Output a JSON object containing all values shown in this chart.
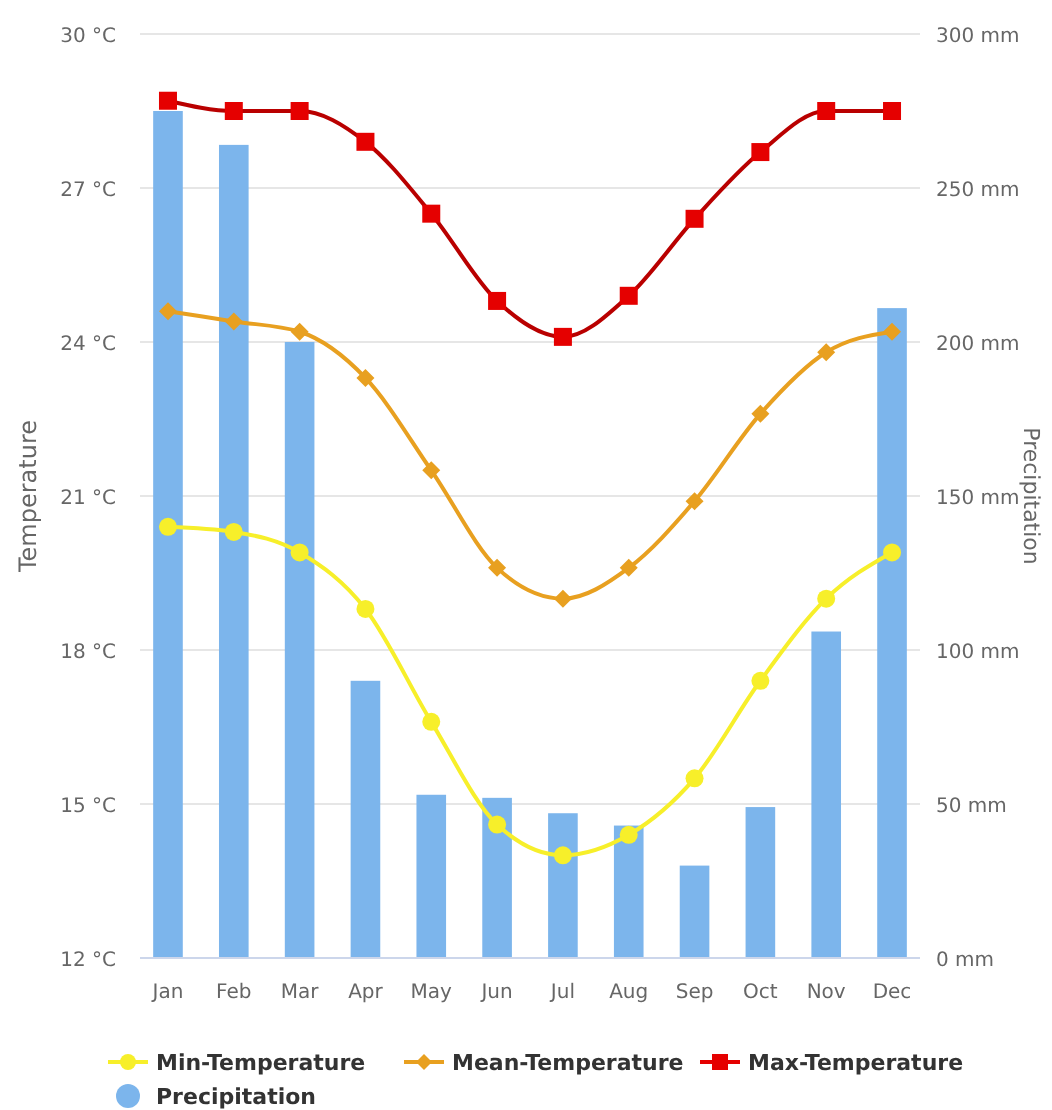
{
  "chart_data": {
    "type": "line",
    "categories": [
      "Jan",
      "Feb",
      "Mar",
      "Apr",
      "May",
      "Jun",
      "Jul",
      "Aug",
      "Sep",
      "Oct",
      "Nov",
      "Dec"
    ],
    "ylabel": "Temperature",
    "y2label": "Precipitation",
    "ylim": [
      12,
      30
    ],
    "yticks": [
      {
        "value": 12,
        "label": "12 °C"
      },
      {
        "value": 15,
        "label": "15 °C"
      },
      {
        "value": 18,
        "label": "18 °C"
      },
      {
        "value": 21,
        "label": "21 °C"
      },
      {
        "value": 24,
        "label": "24 °C"
      },
      {
        "value": 27,
        "label": "27 °C"
      },
      {
        "value": 30,
        "label": "30 °C"
      }
    ],
    "y2lim": [
      0,
      300
    ],
    "y2ticks": [
      {
        "value": 0,
        "label": "0 mm"
      },
      {
        "value": 50,
        "label": "50 mm"
      },
      {
        "value": 100,
        "label": "100 mm"
      },
      {
        "value": 150,
        "label": "150 mm"
      },
      {
        "value": 200,
        "label": "200 mm"
      },
      {
        "value": 250,
        "label": "250 mm"
      },
      {
        "value": 300,
        "label": "300 mm"
      }
    ],
    "grid": "y",
    "legend": "bottom",
    "series": [
      {
        "name": "Precipitation",
        "type": "bar",
        "axis": "y2",
        "color": "#7cb5ec",
        "values": [
          275,
          264,
          200,
          90,
          53,
          52,
          47,
          43,
          30,
          49,
          106,
          211
        ]
      },
      {
        "name": "Min-Temperature",
        "marker": "circle",
        "color": "#f7ef2a",
        "values": [
          20.4,
          20.3,
          19.9,
          18.8,
          16.6,
          14.6,
          14.0,
          14.4,
          15.5,
          17.4,
          19.0,
          19.9
        ]
      },
      {
        "name": "Mean-Temperature",
        "marker": "diamond",
        "color": "#e8a020",
        "values": [
          24.6,
          24.4,
          24.2,
          23.3,
          21.5,
          19.6,
          19.0,
          19.6,
          20.9,
          22.6,
          23.8,
          24.2
        ]
      },
      {
        "name": "Max-Temperature",
        "marker": "square",
        "color": "#e50000",
        "values": [
          28.7,
          28.5,
          28.5,
          27.9,
          26.5,
          24.8,
          24.1,
          24.9,
          26.4,
          27.7,
          28.5,
          28.5
        ]
      }
    ]
  }
}
